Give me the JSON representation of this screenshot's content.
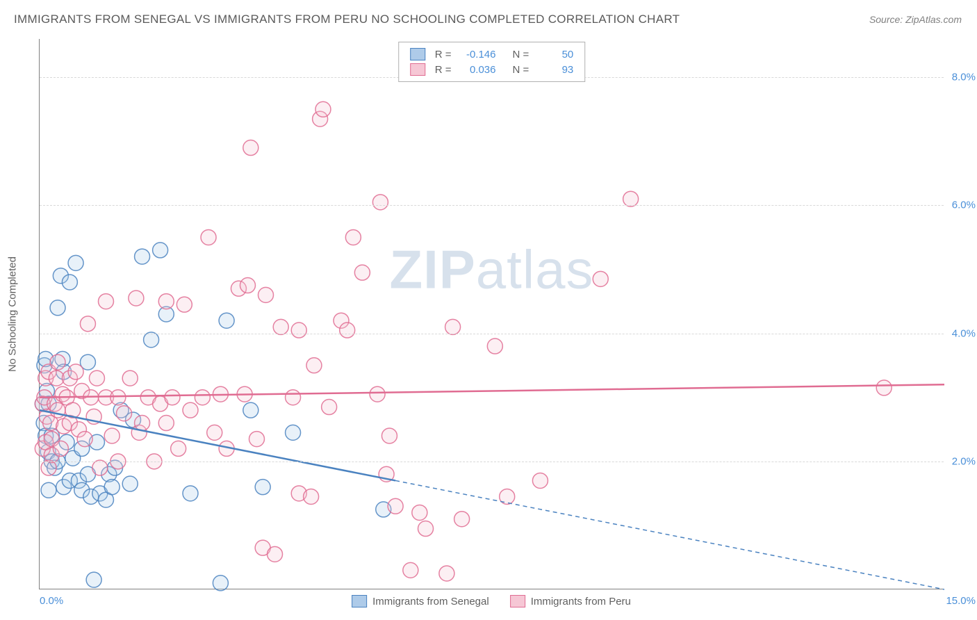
{
  "title": "IMMIGRANTS FROM SENEGAL VS IMMIGRANTS FROM PERU NO SCHOOLING COMPLETED CORRELATION CHART",
  "source": "Source: ZipAtlas.com",
  "watermark": {
    "bold": "ZIP",
    "rest": "atlas"
  },
  "y_axis_title": "No Schooling Completed",
  "chart": {
    "type": "scatter",
    "xlim": [
      0.0,
      15.0
    ],
    "ylim": [
      0.0,
      8.6
    ],
    "x_ticks": [
      {
        "value": 0.0,
        "label": "0.0%"
      },
      {
        "value": 15.0,
        "label": "15.0%"
      }
    ],
    "y_ticks": [
      {
        "value": 2.0,
        "label": "2.0%"
      },
      {
        "value": 4.0,
        "label": "4.0%"
      },
      {
        "value": 6.0,
        "label": "6.0%"
      },
      {
        "value": 8.0,
        "label": "8.0%"
      }
    ],
    "grid_color": "#d8d8d8",
    "background_color": "#ffffff",
    "marker_radius": 11,
    "marker_stroke_width": 1.5,
    "marker_fill_opacity": 0.28,
    "marker_stroke_opacity": 0.85,
    "trend_line_width": 2.5,
    "dash_pattern": "6,5",
    "series": [
      {
        "name": "Immigrants from Senegal",
        "color": "#5b93d1",
        "fill": "#aecbe9",
        "stroke": "#4a82c0",
        "legend_r": "-0.146",
        "legend_n": "50",
        "trend_line": {
          "x1": 0.0,
          "y1": 2.8,
          "x2_solid": 5.9,
          "y2_solid": 1.7,
          "x2": 15.0,
          "y2": 0.0
        },
        "points": [
          [
            0.05,
            2.9
          ],
          [
            0.07,
            2.6
          ],
          [
            0.08,
            3.5
          ],
          [
            0.1,
            2.4
          ],
          [
            0.1,
            3.6
          ],
          [
            0.12,
            3.1
          ],
          [
            0.14,
            2.15
          ],
          [
            0.15,
            1.55
          ],
          [
            0.15,
            2.9
          ],
          [
            0.2,
            2.0
          ],
          [
            0.2,
            2.4
          ],
          [
            0.25,
            1.9
          ],
          [
            0.3,
            2.0
          ],
          [
            0.3,
            4.4
          ],
          [
            0.35,
            4.9
          ],
          [
            0.38,
            3.6
          ],
          [
            0.4,
            1.6
          ],
          [
            0.4,
            3.4
          ],
          [
            0.45,
            2.3
          ],
          [
            0.5,
            1.7
          ],
          [
            0.5,
            4.8
          ],
          [
            0.55,
            2.05
          ],
          [
            0.6,
            5.1
          ],
          [
            0.65,
            1.7
          ],
          [
            0.7,
            1.55
          ],
          [
            0.7,
            2.2
          ],
          [
            0.8,
            1.8
          ],
          [
            0.8,
            3.55
          ],
          [
            0.85,
            1.45
          ],
          [
            0.9,
            0.15
          ],
          [
            0.95,
            2.3
          ],
          [
            1.0,
            1.5
          ],
          [
            1.1,
            1.4
          ],
          [
            1.15,
            1.8
          ],
          [
            1.2,
            1.6
          ],
          [
            1.25,
            1.9
          ],
          [
            1.35,
            2.8
          ],
          [
            1.5,
            1.65
          ],
          [
            1.55,
            2.65
          ],
          [
            1.7,
            5.2
          ],
          [
            1.85,
            3.9
          ],
          [
            2.0,
            5.3
          ],
          [
            2.1,
            4.3
          ],
          [
            2.5,
            1.5
          ],
          [
            3.0,
            0.1
          ],
          [
            3.1,
            4.2
          ],
          [
            3.5,
            2.8
          ],
          [
            3.7,
            1.6
          ],
          [
            4.2,
            2.45
          ],
          [
            5.7,
            1.25
          ]
        ]
      },
      {
        "name": "Immigrants from Peru",
        "color": "#e37da0",
        "fill": "#f6c7d5",
        "stroke": "#e06c92",
        "legend_r": "0.036",
        "legend_n": "93",
        "trend_line": {
          "x1": 0.0,
          "y1": 3.0,
          "x2_solid": 15.0,
          "y2_solid": 3.2,
          "x2": 15.0,
          "y2": 3.2
        },
        "points": [
          [
            0.05,
            2.2
          ],
          [
            0.05,
            2.9
          ],
          [
            0.08,
            3.0
          ],
          [
            0.1,
            2.3
          ],
          [
            0.1,
            3.3
          ],
          [
            0.12,
            2.7
          ],
          [
            0.15,
            1.9
          ],
          [
            0.15,
            3.4
          ],
          [
            0.18,
            2.6
          ],
          [
            0.2,
            2.1
          ],
          [
            0.2,
            2.35
          ],
          [
            0.25,
            2.9
          ],
          [
            0.28,
            3.3
          ],
          [
            0.3,
            2.8
          ],
          [
            0.3,
            3.55
          ],
          [
            0.35,
            2.2
          ],
          [
            0.38,
            3.05
          ],
          [
            0.4,
            2.55
          ],
          [
            0.45,
            3.0
          ],
          [
            0.5,
            2.6
          ],
          [
            0.5,
            3.3
          ],
          [
            0.55,
            2.8
          ],
          [
            0.6,
            3.4
          ],
          [
            0.65,
            2.5
          ],
          [
            0.7,
            3.1
          ],
          [
            0.75,
            2.35
          ],
          [
            0.8,
            4.15
          ],
          [
            0.85,
            3.0
          ],
          [
            0.9,
            2.7
          ],
          [
            0.95,
            3.3
          ],
          [
            1.0,
            1.9
          ],
          [
            1.1,
            3.0
          ],
          [
            1.1,
            4.5
          ],
          [
            1.2,
            2.4
          ],
          [
            1.3,
            2.0
          ],
          [
            1.3,
            3.0
          ],
          [
            1.4,
            2.75
          ],
          [
            1.5,
            3.3
          ],
          [
            1.6,
            4.55
          ],
          [
            1.65,
            2.45
          ],
          [
            1.7,
            2.6
          ],
          [
            1.8,
            3.0
          ],
          [
            1.9,
            2.0
          ],
          [
            2.0,
            2.9
          ],
          [
            2.1,
            2.6
          ],
          [
            2.1,
            4.5
          ],
          [
            2.2,
            3.0
          ],
          [
            2.3,
            2.2
          ],
          [
            2.4,
            4.45
          ],
          [
            2.5,
            2.8
          ],
          [
            2.7,
            3.0
          ],
          [
            2.8,
            5.5
          ],
          [
            2.9,
            2.45
          ],
          [
            3.0,
            3.05
          ],
          [
            3.1,
            2.2
          ],
          [
            3.3,
            4.7
          ],
          [
            3.4,
            3.05
          ],
          [
            3.45,
            4.75
          ],
          [
            3.5,
            6.9
          ],
          [
            3.6,
            2.35
          ],
          [
            3.7,
            0.65
          ],
          [
            3.75,
            4.6
          ],
          [
            3.9,
            0.55
          ],
          [
            4.0,
            4.1
          ],
          [
            4.2,
            3.0
          ],
          [
            4.3,
            4.05
          ],
          [
            4.3,
            1.5
          ],
          [
            4.5,
            1.45
          ],
          [
            4.55,
            3.5
          ],
          [
            4.65,
            7.35
          ],
          [
            4.7,
            7.5
          ],
          [
            4.8,
            2.85
          ],
          [
            5.0,
            4.2
          ],
          [
            5.1,
            4.05
          ],
          [
            5.2,
            5.5
          ],
          [
            5.35,
            4.95
          ],
          [
            5.6,
            3.05
          ],
          [
            5.65,
            6.05
          ],
          [
            5.75,
            1.8
          ],
          [
            5.8,
            2.4
          ],
          [
            5.9,
            1.3
          ],
          [
            6.15,
            0.3
          ],
          [
            6.3,
            1.2
          ],
          [
            6.4,
            0.95
          ],
          [
            6.75,
            0.25
          ],
          [
            6.85,
            4.1
          ],
          [
            7.0,
            1.1
          ],
          [
            7.55,
            3.8
          ],
          [
            7.75,
            1.45
          ],
          [
            8.3,
            1.7
          ],
          [
            9.3,
            4.85
          ],
          [
            9.8,
            6.1
          ],
          [
            14.0,
            3.15
          ]
        ]
      }
    ]
  },
  "legend_bottom": [
    {
      "label": "Immigrants from Senegal",
      "fill": "#aecbe9",
      "stroke": "#4a82c0"
    },
    {
      "label": "Immigrants from Peru",
      "fill": "#f6c7d5",
      "stroke": "#e06c92"
    }
  ]
}
